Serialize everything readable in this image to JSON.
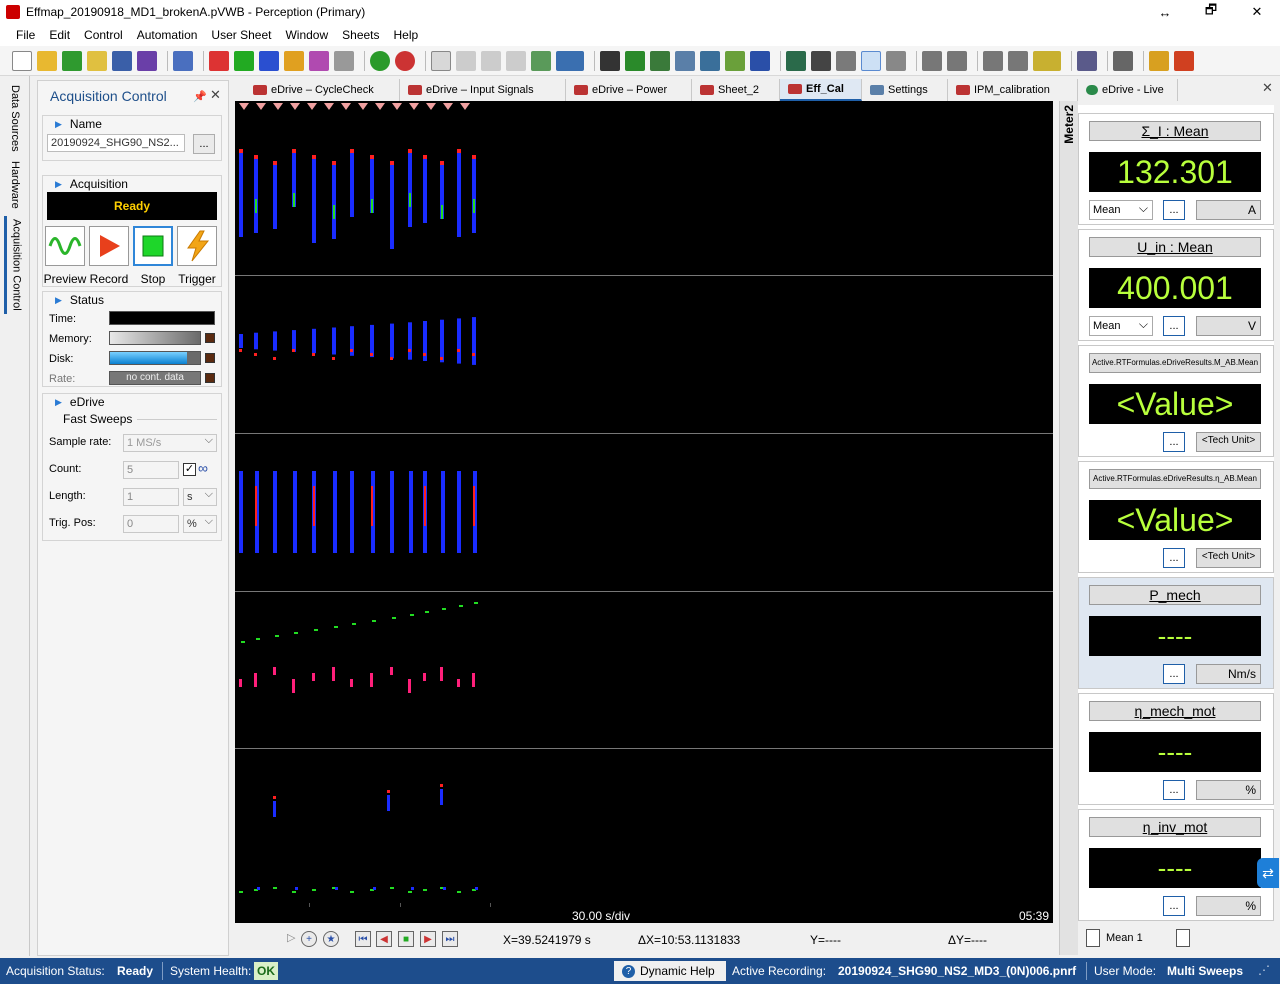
{
  "window": {
    "title": "Effmap_20190918_MD1_brokenA.pVWB - Perception (Primary)",
    "controls": [
      "↔",
      "🗗",
      "✕"
    ]
  },
  "menu": [
    "File",
    "Edit",
    "Control",
    "Automation",
    "User Sheet",
    "Window",
    "Sheets",
    "Help"
  ],
  "side_tabs": [
    "Data Sources",
    "Hardware",
    "Acquisition Control"
  ],
  "acq_panel": {
    "title": "Acquisition Control",
    "name_header": "Name",
    "name_value": "20190924_SHG90_NS2...",
    "more": "...",
    "acquisition_header": "Acquisition",
    "state": "Ready",
    "buttons": [
      "Preview",
      "Record",
      "Stop",
      "Trigger"
    ],
    "status_header": "Status",
    "status_labels": [
      "Time:",
      "Memory:",
      "Disk:",
      "Rate:"
    ],
    "rate_text": "no cont. data",
    "disk_fill": 0.86,
    "edrive_header": "eDrive",
    "fast_sweeps": "Fast Sweeps",
    "sample_rate_label": "Sample rate:",
    "sample_rate": "1 MS/s",
    "count_label": "Count:",
    "count": "5",
    "length_label": "Length:",
    "length": "1",
    "length_unit": "s",
    "trig_label": "Trig. Pos:",
    "trig": "0",
    "trig_unit": "%"
  },
  "tabs": [
    {
      "label": "eDrive – CycleCheck",
      "active": false
    },
    {
      "label": "eDrive – Input Signals",
      "active": false
    },
    {
      "label": "eDrive – Power",
      "active": false
    },
    {
      "label": "Sheet_2",
      "active": false
    },
    {
      "label": "Eff_Cal",
      "active": true
    },
    {
      "label": "Settings",
      "active": false
    },
    {
      "label": "IPM_calibration",
      "active": false
    },
    {
      "label": "eDrive - Live",
      "active": false
    }
  ],
  "plot": {
    "timebase": "30.00  s/div",
    "end_time": "05:39"
  },
  "cursor": {
    "x": "X=39.5241979 s",
    "dx": "ΔX=10:53.1131833",
    "y": "Y=----",
    "dy": "ΔY=----"
  },
  "meter_panel": {
    "label": "Meter2",
    "meters": [
      {
        "title": "Σ_I : Mean",
        "value": "132.301",
        "mode": "Mean",
        "unit": "A"
      },
      {
        "title": "U_in : Mean",
        "value": "400.001",
        "mode": "Mean",
        "unit": "V"
      },
      {
        "title": "Active.RTFormulas.eDriveResults.M_AB.Mean",
        "value": "<Value>",
        "mode": "",
        "unit": "<Tech Unit>"
      },
      {
        "title": "Active.RTFormulas.eDriveResults.η_AB.Mean",
        "value": "<Value>",
        "mode": "",
        "unit": "<Tech Unit>"
      },
      {
        "title": "P_mech",
        "value": "----",
        "mode": "",
        "unit": "Nm/s"
      },
      {
        "title": "η_mech_mot",
        "value": "----",
        "mode": "",
        "unit": "%"
      },
      {
        "title": "η_inv_mot",
        "value": "----",
        "mode": "",
        "unit": "%"
      }
    ],
    "tab_label": "Mean 1"
  },
  "statusbar": {
    "acq_label": "Acquisition Status:",
    "acq_value": "Ready",
    "health_label": "System Health:",
    "health_value": "OK",
    "help": "Dynamic Help",
    "recording_label": "Active Recording:",
    "recording_value": "20190924_SHG90_NS2_MD3_(0N)006.pnrf",
    "mode_label": "User Mode:",
    "mode_value": "Multi Sweeps"
  },
  "colors": {
    "accent": "#1f5fa8",
    "meter_text": "#b8ff3c",
    "trace_blue": "#1a2cff",
    "trace_red": "#ff2020",
    "trace_green": "#22dd22",
    "trace_pink": "#ff1f7a",
    "statusbar": "#1d4d8c"
  },
  "icons": [
    "new-icon",
    "open-icon",
    "save-icon",
    "play-icon",
    "stop-icon",
    "trigger-icon",
    "zoom-icon",
    "print-icon"
  ]
}
